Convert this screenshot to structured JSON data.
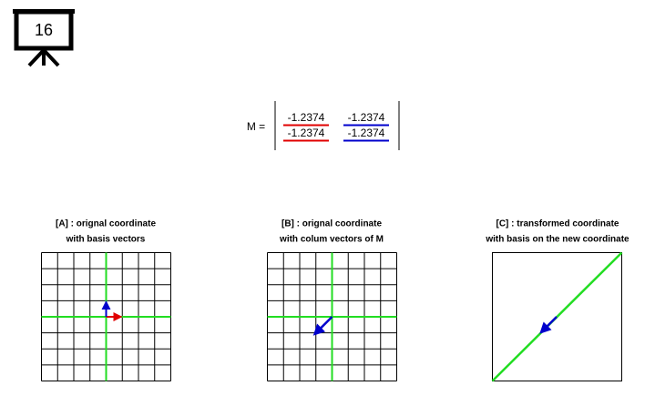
{
  "slide_number": "16",
  "matrix": {
    "label": "M =",
    "rows": [
      [
        "-1.2374",
        "-1.2374"
      ],
      [
        "-1.2374",
        "-1.2374"
      ]
    ]
  },
  "panels": [
    {
      "title_lines": [
        "[A] : orignal coordinate",
        "with basis vectors"
      ]
    },
    {
      "title_lines": [
        "[B] : orignal coordinate",
        "with colum vectors of M"
      ]
    },
    {
      "title_lines": [
        "[C] : transformed coordinate",
        "with basis on the new coordinate"
      ]
    }
  ]
}
